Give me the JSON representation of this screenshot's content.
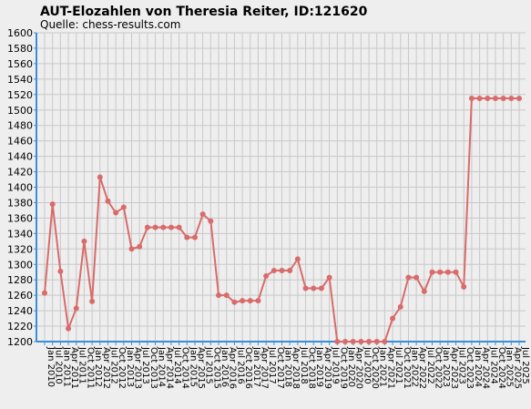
{
  "chart_data": {
    "type": "line",
    "title": "AUT-Elozahlen von Theresia Reiter, ID:121620",
    "subtitle": "Quelle: chess-results.com",
    "categories": [
      "Jan 2010",
      "Jul 2010",
      "Jan 2011",
      "Apr 2011",
      "Jul 2011",
      "Oct 2011",
      "Jan 2012",
      "Apr 2012",
      "Jul 2012",
      "Oct 2012",
      "Jan 2013",
      "Apr 2013",
      "Jul 2013",
      "Oct 2013",
      "Jan 2014",
      "Apr 2014",
      "Jul 2014",
      "Oct 2014",
      "Jan 2015",
      "Apr 2015",
      "Jul 2015",
      "Oct 2015",
      "Jan 2016",
      "Apr 2016",
      "Jul 2016",
      "Oct 2016",
      "Jan 2017",
      "Apr 2017",
      "Jul 2017",
      "Oct 2017",
      "Jan 2018",
      "Apr 2018",
      "Jul 2018",
      "Oct 2018",
      "Jan 2019",
      "Apr 2019",
      "Jul 2019",
      "Oct 2019",
      "Jan 2020",
      "Apr 2020",
      "Jul 2020",
      "Oct 2020",
      "Jan 2021",
      "Apr 2021",
      "Jul 2021",
      "Oct 2021",
      "Jan 2022",
      "Apr 2022",
      "Jul 2022",
      "Oct 2022",
      "Jan 2023",
      "Apr 2023",
      "Jul 2023",
      "Oct 2023",
      "Jan 2024",
      "Apr 2024",
      "Jul 2024",
      "Oct 2024",
      "Jan 2025",
      "Apr 2025",
      "Jul 2025"
    ],
    "series": [
      {
        "name": "Elo",
        "color": "#d96b6b",
        "values": [
          1263,
          1378,
          1291,
          1217,
          1243,
          1330,
          1252,
          1413,
          1382,
          1367,
          1374,
          1320,
          1323,
          1348,
          1348,
          1348,
          1348,
          1348,
          1335,
          1335,
          1365,
          1356,
          1260,
          1260,
          1251,
          1253,
          1253,
          1253,
          1285,
          1292,
          1292,
          1292,
          1307,
          1269,
          1269,
          1269,
          1283,
          1200,
          1200,
          1200,
          1200,
          1200,
          1200,
          1200,
          1230,
          1245,
          1283,
          1283,
          1265,
          1290,
          1290,
          1290,
          1290,
          1271,
          1515,
          1515,
          1515,
          1515,
          1515,
          1515,
          1515
        ]
      }
    ],
    "ylim": [
      1200,
      1600
    ],
    "yticks": [
      1200,
      1220,
      1240,
      1260,
      1280,
      1300,
      1320,
      1340,
      1360,
      1380,
      1400,
      1420,
      1440,
      1460,
      1480,
      1500,
      1520,
      1540,
      1560,
      1580,
      1600
    ],
    "grid": true
  }
}
